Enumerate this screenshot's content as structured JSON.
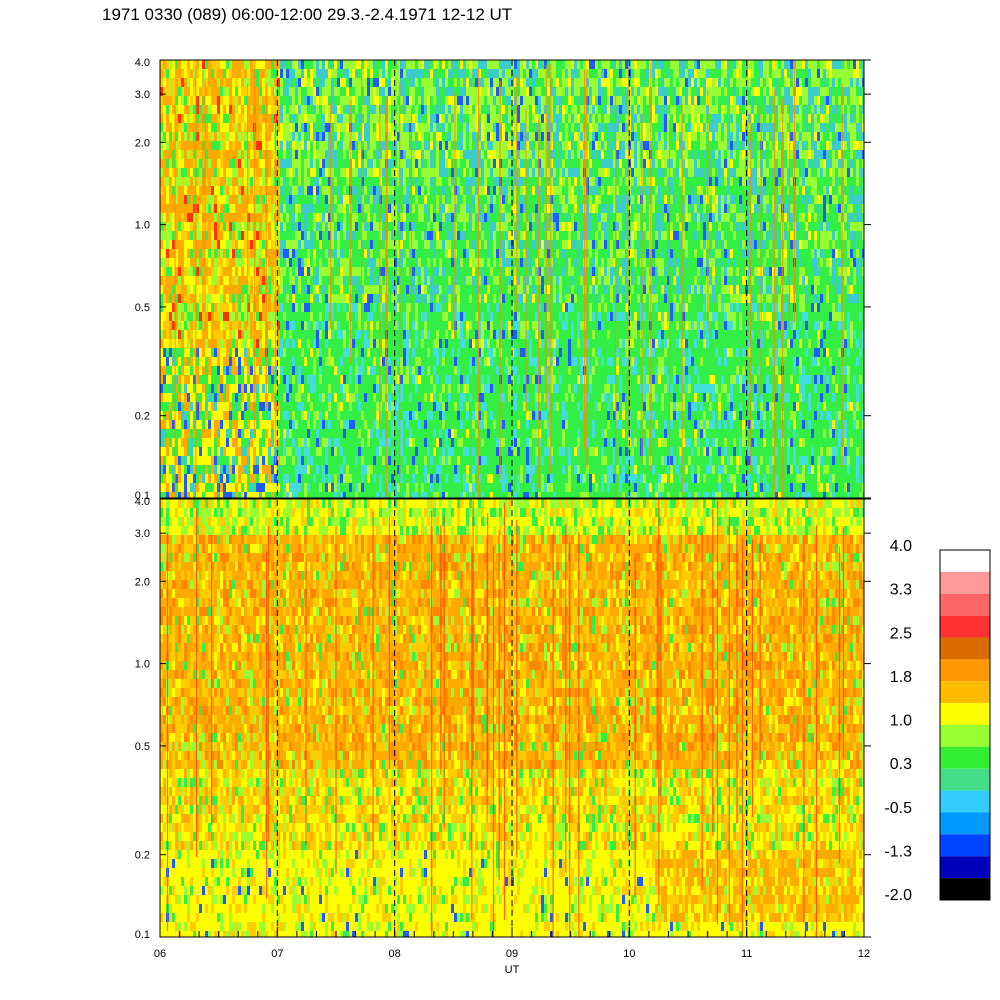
{
  "title": "1971 0330 (089) 06:00-12:00 29.3.-2.4.1971  12-12 UT",
  "chart_data": [
    {
      "type": "heatmap",
      "name": "upper-panel",
      "x_range": [
        6,
        12
      ],
      "y_scale": "log",
      "ylim": [
        0.1,
        4.0
      ],
      "y_ticks": [
        "0.1",
        "0.2",
        "0.5",
        "1.0",
        "2.0",
        "3.0",
        "4.0"
      ],
      "dashed_vertical_lines_at_hours": [
        7,
        8,
        9,
        10,
        11
      ],
      "dominant_levels": "green / cyan / yellow-green, with orange-yellow activity before 07 UT"
    },
    {
      "type": "heatmap",
      "name": "lower-panel",
      "x_range": [
        6,
        12
      ],
      "y_scale": "log",
      "ylim": [
        0.1,
        4.0
      ],
      "y_ticks": [
        "0.1",
        "0.2",
        "0.5",
        "1.0",
        "2.0",
        "3.0",
        "4.0"
      ],
      "x_ticks": [
        "06",
        "07",
        "08",
        "09",
        "10",
        "11",
        "12"
      ],
      "xlabel": "UT",
      "dashed_vertical_lines_at_hours": [
        7,
        8,
        9,
        10,
        11
      ],
      "dominant_levels": "orange / yellow throughout, green-yellow near the top edge"
    }
  ],
  "colorbar": {
    "labels": [
      "4.0",
      "3.3",
      "2.5",
      "1.8",
      "1.0",
      "0.3",
      "-0.5",
      "-1.3",
      "-2.0"
    ],
    "colors_top_to_bottom": [
      "#ffffff",
      "#ff9999",
      "#ff6666",
      "#ff3333",
      "#d96c00",
      "#ff9900",
      "#ffbb00",
      "#ffff00",
      "#99ff33",
      "#33ee33",
      "#44dd88",
      "#33ccff",
      "#0099ff",
      "#0044ff",
      "#0000bb",
      "#000000"
    ]
  }
}
